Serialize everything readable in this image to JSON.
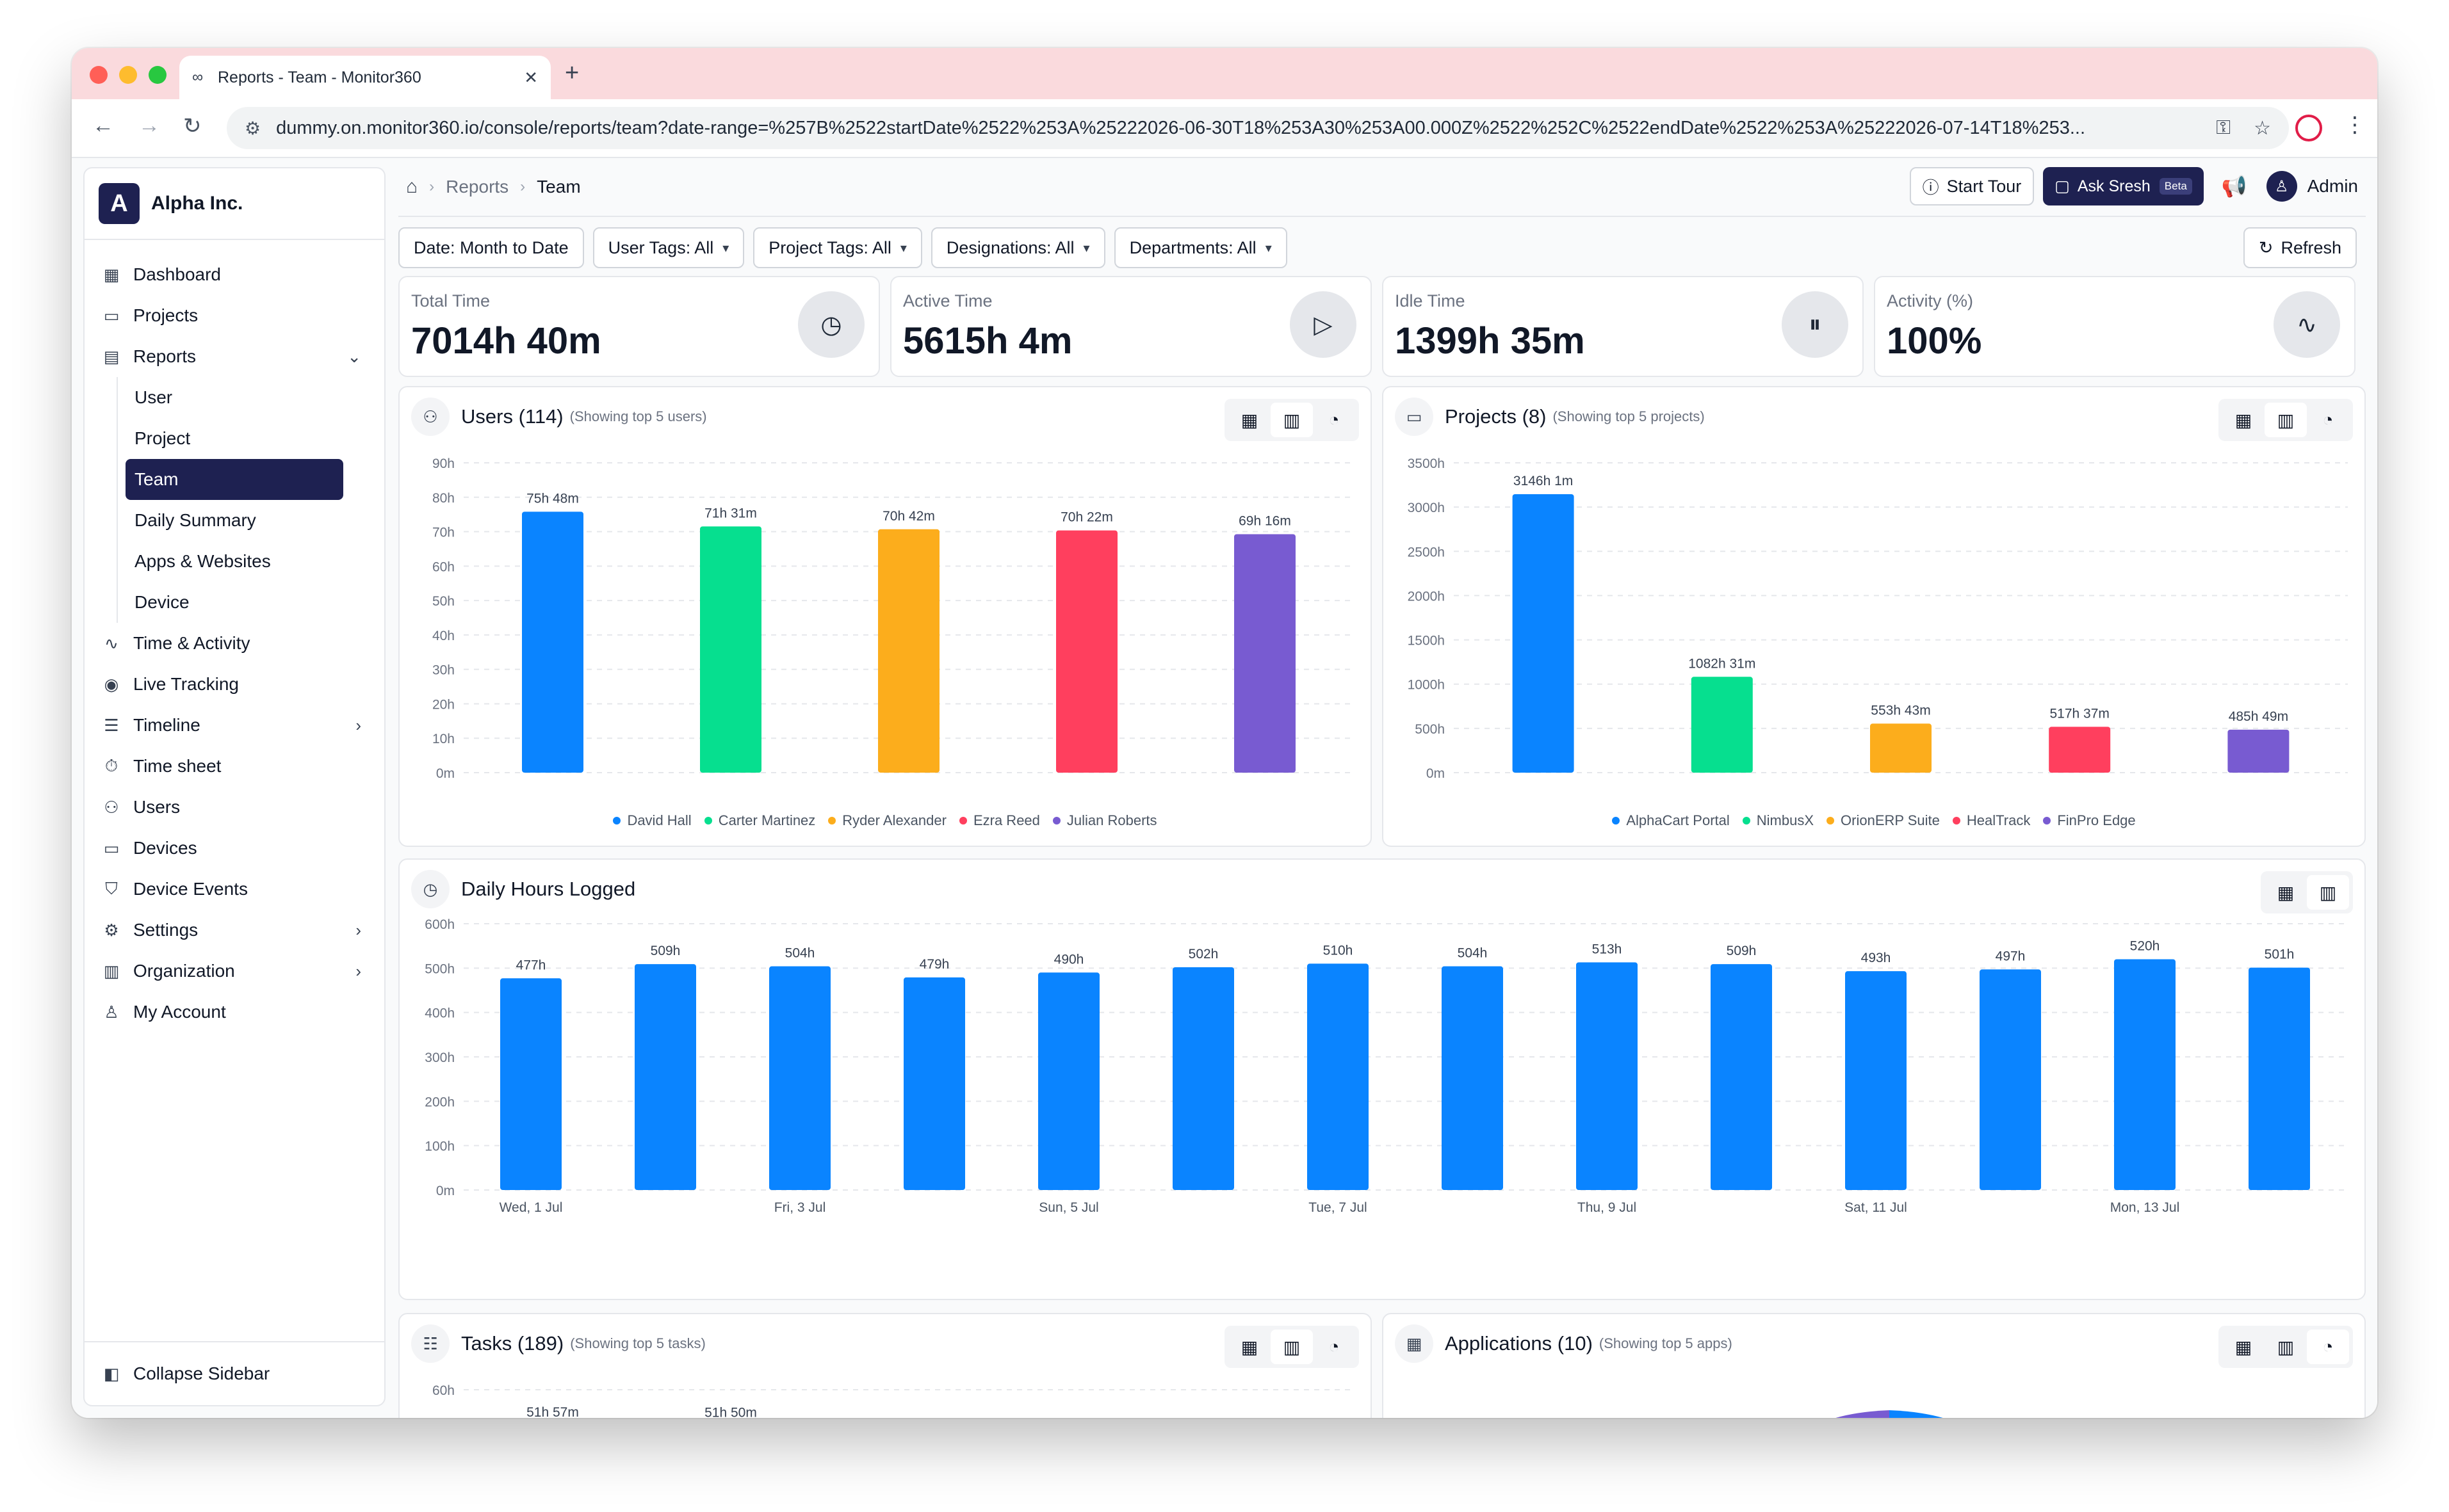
{
  "browser": {
    "tab_title": "Reports - Team - Monitor360",
    "url": "dummy.on.monitor360.io/console/reports/team?date-range=%257B%2522startDate%2522%253A%25222026-06-30T18%253A30%253A00.000Z%2522%252C%2522endDate%2522%253A%25222026-07-14T18%253..."
  },
  "sidebar": {
    "brand_initial": "A",
    "brand_name": "Alpha Inc.",
    "items": [
      {
        "label": "Dashboard",
        "icon": "dashboard-icon"
      },
      {
        "label": "Projects",
        "icon": "folder-icon"
      },
      {
        "label": "Reports",
        "icon": "report-icon"
      },
      {
        "label": "Time & Activity",
        "icon": "activity-icon"
      },
      {
        "label": "Live Tracking",
        "icon": "broadcast-icon"
      },
      {
        "label": "Timeline",
        "icon": "timeline-icon"
      },
      {
        "label": "Time sheet",
        "icon": "stopwatch-icon"
      },
      {
        "label": "Users",
        "icon": "users-icon"
      },
      {
        "label": "Devices",
        "icon": "monitor-icon"
      },
      {
        "label": "Device Events",
        "icon": "shield-icon"
      },
      {
        "label": "Settings",
        "icon": "gear-icon"
      },
      {
        "label": "Organization",
        "icon": "building-icon"
      },
      {
        "label": "My Account",
        "icon": "user-icon"
      }
    ],
    "report_subitems": [
      "User",
      "Project",
      "Team",
      "Daily Summary",
      "Apps & Websites",
      "Device"
    ],
    "active_subitem": "Team",
    "collapse_label": "Collapse Sidebar"
  },
  "topbar": {
    "crumb_reports": "Reports",
    "crumb_team": "Team",
    "start_tour": "Start Tour",
    "ask": "Ask Sresh",
    "beta": "Beta",
    "user": "Admin"
  },
  "filters": {
    "date": "Date: Month to Date",
    "user_tags": "User Tags: All",
    "project_tags": "Project Tags: All",
    "designations": "Designations: All",
    "departments": "Departments: All",
    "refresh": "Refresh"
  },
  "stats": [
    {
      "label": "Total Time",
      "value": "7014h 40m",
      "icon": "clock-icon"
    },
    {
      "label": "Active Time",
      "value": "5615h 4m",
      "icon": "play-circle-icon"
    },
    {
      "label": "Idle Time",
      "value": "1399h 35m",
      "icon": "pause-circle-icon"
    },
    {
      "label": "Activity (%)",
      "value": "100%",
      "icon": "pulse-icon"
    }
  ],
  "cards": {
    "users": {
      "title": "Users (114)",
      "subtitle": "(Showing top 5 users)"
    },
    "projects": {
      "title": "Projects (8)",
      "subtitle": "(Showing top 5 projects)"
    },
    "daily": {
      "title": "Daily Hours Logged"
    },
    "tasks": {
      "title": "Tasks (189)",
      "subtitle": "(Showing top 5 tasks)"
    },
    "apps": {
      "title": "Applications (10)",
      "subtitle": "(Showing top 5 apps)"
    }
  },
  "colors": {
    "blue": "#0a84ff",
    "green": "#06df8f",
    "orange": "#fcad1c",
    "red": "#ff3f5e",
    "purple": "#785bd1",
    "navy": "#1e2151"
  },
  "chart_data": [
    {
      "type": "bar",
      "id": "users",
      "categories": [
        "David Hall",
        "Carter Martinez",
        "Ryder Alexander",
        "Ezra Reed",
        "Julian Roberts"
      ],
      "values": [
        75.8,
        71.52,
        70.7,
        70.37,
        69.27
      ],
      "data_labels": [
        "75h 48m",
        "71h 31m",
        "70h 42m",
        "70h 22m",
        "69h 16m"
      ],
      "yticks": [
        "0m",
        "10h",
        "20h",
        "30h",
        "40h",
        "50h",
        "60h",
        "70h",
        "80h",
        "90h"
      ],
      "ylim": [
        0,
        90
      ],
      "legend": "bottom"
    },
    {
      "type": "bar",
      "id": "projects",
      "categories": [
        "AlphaCart Portal",
        "NimbusX",
        "OrionERP Suite",
        "HealTrack",
        "FinPro Edge"
      ],
      "values": [
        3146.02,
        1082.52,
        553.72,
        517.62,
        485.82
      ],
      "data_labels": [
        "3146h 1m",
        "1082h 31m",
        "553h 43m",
        "517h 37m",
        "485h 49m"
      ],
      "yticks": [
        "0m",
        "500h",
        "1000h",
        "1500h",
        "2000h",
        "2500h",
        "3000h",
        "3500h"
      ],
      "ylim": [
        0,
        3500
      ],
      "legend": "bottom"
    },
    {
      "type": "bar",
      "id": "daily",
      "categories": [
        "Wed, 1 Jul",
        "",
        "Fri, 3 Jul",
        "",
        "Sun, 5 Jul",
        "",
        "Tue, 7 Jul",
        "",
        "Thu, 9 Jul",
        "",
        "Sat, 11 Jul",
        "",
        "Mon, 13 Jul",
        ""
      ],
      "values": [
        477,
        509,
        504,
        479,
        490,
        502,
        510,
        504,
        513,
        509,
        493,
        497,
        520,
        501
      ],
      "data_labels": [
        "477h",
        "509h",
        "504h",
        "479h",
        "490h",
        "502h",
        "510h",
        "504h",
        "513h",
        "509h",
        "493h",
        "497h",
        "520h",
        "501h"
      ],
      "yticks": [
        "0m",
        "100h",
        "200h",
        "300h",
        "400h",
        "500h",
        "600h"
      ],
      "ylim": [
        0,
        600
      ]
    },
    {
      "type": "bar",
      "id": "tasks",
      "values": [
        51.95,
        51.83
      ],
      "data_labels": [
        "51h 57m",
        "51h 50m"
      ],
      "yticks": [
        "60h"
      ],
      "ylim": [
        0,
        60
      ]
    }
  ]
}
